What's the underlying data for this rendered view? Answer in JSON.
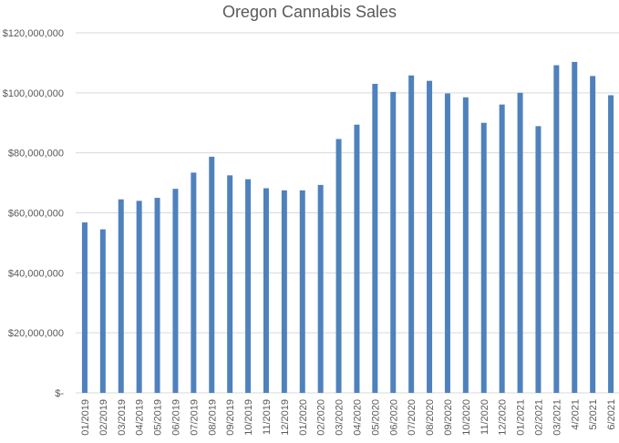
{
  "chart_data": {
    "type": "bar",
    "title": "Oregon Cannabis Sales",
    "xlabel": "",
    "ylabel": "",
    "ylim": [
      0,
      120000000
    ],
    "y_ticks": [
      0,
      20000000,
      40000000,
      60000000,
      80000000,
      100000000,
      120000000
    ],
    "y_tick_labels": [
      "$-",
      "$20,000,000",
      "$40,000,000",
      "$60,000,000",
      "$80,000,000",
      "$100,000,000",
      "$120,000,000"
    ],
    "grid": true,
    "legend": "none",
    "bar_color": "#4f81bd",
    "categories": [
      "01/2019",
      "02/2019",
      "03/2019",
      "04/2019",
      "05/2019",
      "06/2019",
      "07/2019",
      "08/2019",
      "09/2019",
      "10/2019",
      "11/2019",
      "12/2019",
      "01/2020",
      "02/2020",
      "03/2020",
      "04/2020",
      "05/2020",
      "06/2020",
      "07/2020",
      "08/2020",
      "09/2020",
      "10/2020",
      "11/2020",
      "12/2020",
      "01/2021",
      "02/2021",
      "03/2021",
      "4/2021",
      "5/2021",
      "6/2021"
    ],
    "values": [
      56800000,
      54500000,
      64500000,
      64000000,
      65000000,
      68000000,
      73400000,
      78700000,
      72500000,
      71200000,
      68200000,
      67500000,
      67500000,
      69300000,
      84600000,
      89400000,
      103000000,
      100300000,
      105800000,
      104000000,
      99800000,
      98500000,
      90000000,
      96100000,
      100000000,
      88900000,
      109200000,
      110300000,
      105600000,
      99200000
    ]
  }
}
